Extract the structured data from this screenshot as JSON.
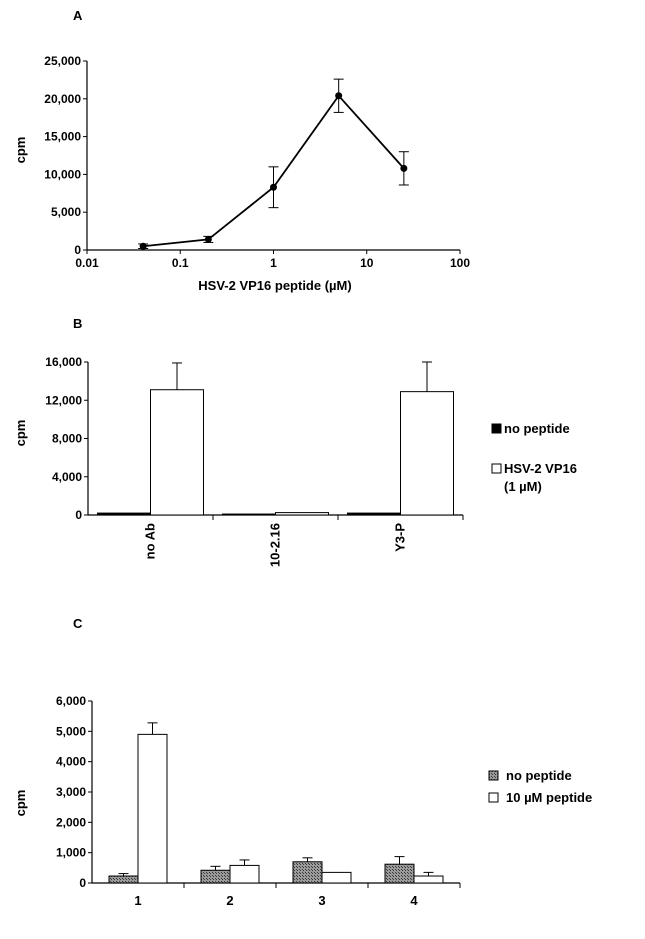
{
  "chart_data": [
    {
      "panel": "A",
      "type": "line",
      "xlabel": "HSV-2 VP16 peptide (µM)",
      "ylabel": "cpm",
      "xscale": "log",
      "xlim": [
        0.01,
        100
      ],
      "ylim": [
        0,
        25000
      ],
      "xticks": [
        "0.01",
        "0.1",
        "1",
        "10",
        "100"
      ],
      "yticks": [
        "0",
        "5,000",
        "10,000",
        "15,000",
        "20,000",
        "25,000"
      ],
      "x": [
        0.04,
        0.2,
        1,
        5,
        25
      ],
      "y": [
        500,
        1400,
        8300,
        20400,
        10800
      ],
      "err": [
        300,
        400,
        2700,
        2200,
        2200
      ]
    },
    {
      "panel": "B",
      "type": "bar",
      "ylabel": "cpm",
      "ylim": [
        0,
        16000
      ],
      "yticks": [
        "0",
        "4,000",
        "8,000",
        "12,000",
        "16,000"
      ],
      "categories": [
        "no Ab",
        "10-2.16",
        "Y3-P"
      ],
      "series": [
        {
          "name": "no peptide",
          "values": [
            200,
            100,
            200
          ],
          "err": [
            0,
            0,
            0
          ],
          "color": "#000000"
        },
        {
          "name": "HSV-2 VP16",
          "name_line2": "(1 µM)",
          "values": [
            13100,
            250,
            12900
          ],
          "err": [
            2800,
            0,
            3100
          ],
          "color": "#ffffff"
        }
      ],
      "legend": "right"
    },
    {
      "panel": "C",
      "type": "bar",
      "ylabel": "cpm",
      "ylim": [
        0,
        6000
      ],
      "yticks": [
        "0",
        "1,000",
        "2,000",
        "3,000",
        "4,000",
        "5,000",
        "6,000"
      ],
      "categories": [
        "1",
        "2",
        "3",
        "4"
      ],
      "series": [
        {
          "name": "no peptide",
          "values": [
            230,
            420,
            700,
            620
          ],
          "err": [
            80,
            130,
            130,
            250
          ],
          "color": "#777777"
        },
        {
          "name": "10 µM peptide",
          "values": [
            4900,
            580,
            350,
            230
          ],
          "err": [
            380,
            180,
            0,
            120
          ],
          "color": "#ffffff"
        }
      ],
      "legend": "right"
    }
  ]
}
